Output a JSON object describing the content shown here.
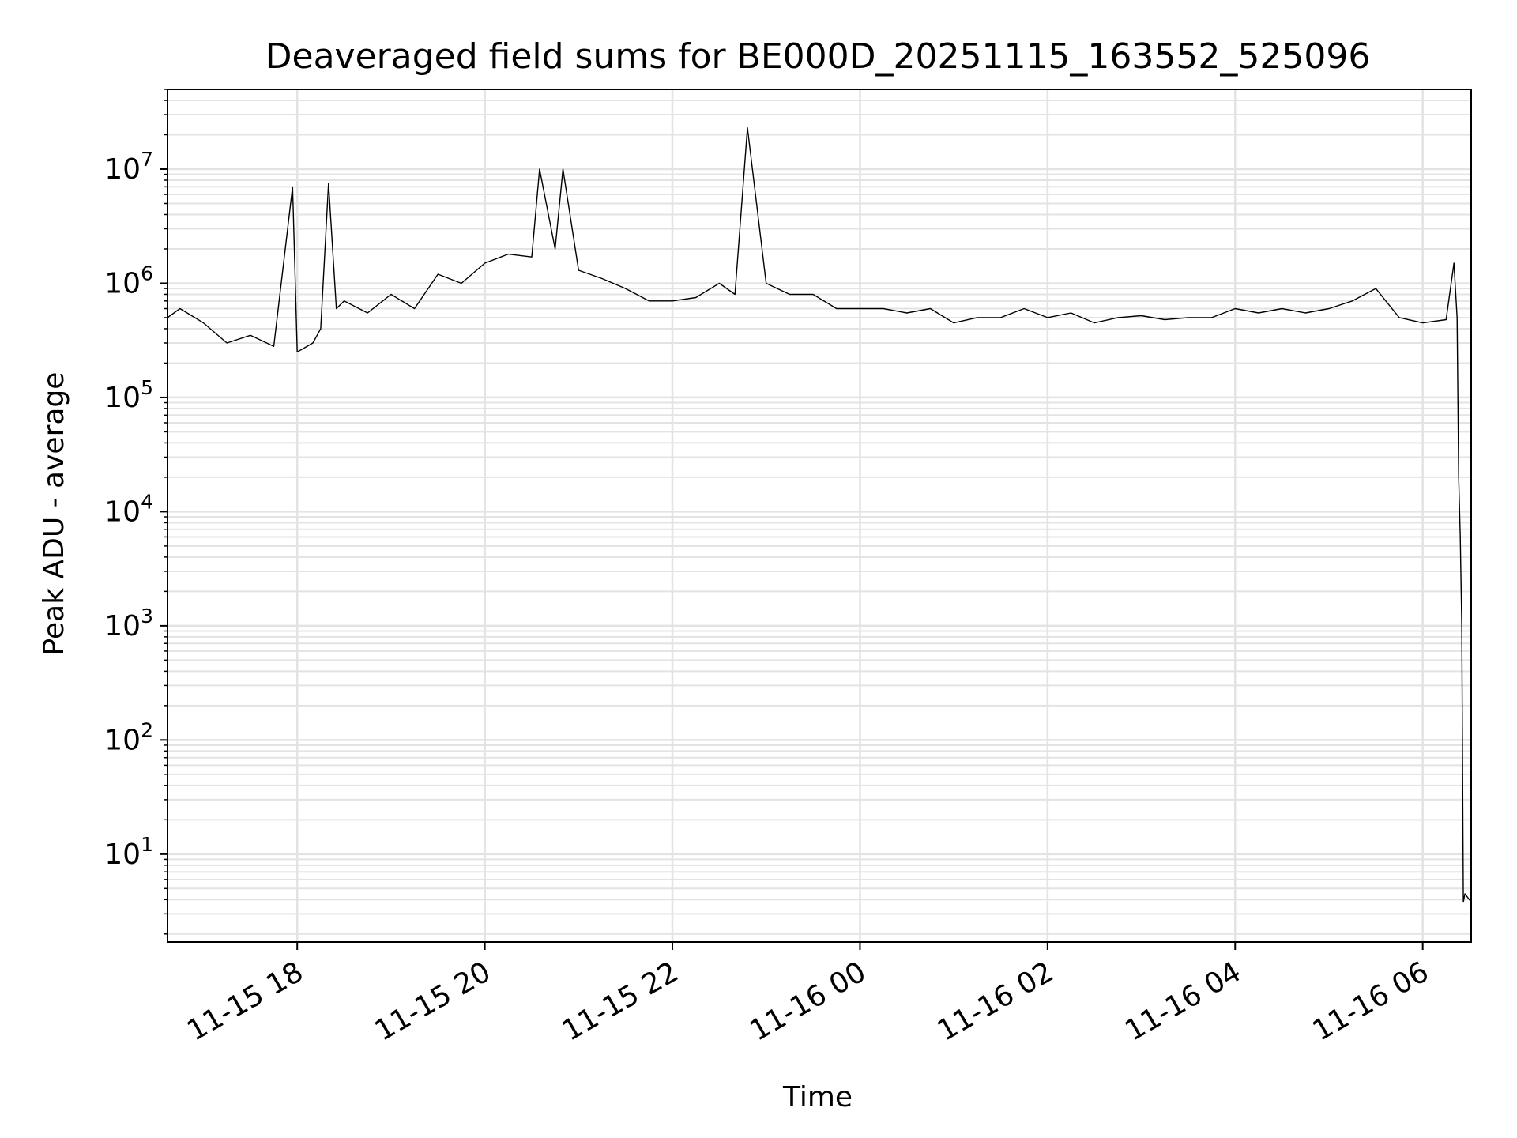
{
  "chart_data": {
    "type": "line",
    "title": "Deaveraged field sums for BE000D_20251115_163552_525096",
    "xlabel": "Time",
    "ylabel": "Peak ADU - average",
    "yscale": "log",
    "ylim": [
      1.7,
      50000000
    ],
    "xlim": [
      "2025-11-15 16:37",
      "2025-11-16 06:31"
    ],
    "grid": true,
    "line_color": "#000000",
    "grid_color": "#e3e3e3",
    "x_ticks": [
      {
        "value": "2025-11-15 18:00",
        "label": "11-15 18"
      },
      {
        "value": "2025-11-15 20:00",
        "label": "11-15 20"
      },
      {
        "value": "2025-11-15 22:00",
        "label": "11-15 22"
      },
      {
        "value": "2025-11-16 00:00",
        "label": "11-16 00"
      },
      {
        "value": "2025-11-16 02:00",
        "label": "11-16 02"
      },
      {
        "value": "2025-11-16 04:00",
        "label": "11-16 04"
      },
      {
        "value": "2025-11-16 06:00",
        "label": "11-16 06"
      }
    ],
    "y_ticks": [
      {
        "value": 10,
        "base": "10",
        "exp": "1"
      },
      {
        "value": 100,
        "base": "10",
        "exp": "2"
      },
      {
        "value": 1000,
        "base": "10",
        "exp": "3"
      },
      {
        "value": 10000,
        "base": "10",
        "exp": "4"
      },
      {
        "value": 100000,
        "base": "10",
        "exp": "5"
      },
      {
        "value": 1000000,
        "base": "10",
        "exp": "6"
      },
      {
        "value": 10000000,
        "base": "10",
        "exp": "7"
      }
    ],
    "series": [
      {
        "x": [
          "2025-11-15 16:37",
          "2025-11-15 16:45",
          "2025-11-15 17:00",
          "2025-11-15 17:15",
          "2025-11-15 17:30",
          "2025-11-15 17:45",
          "2025-11-15 17:57",
          "2025-11-15 18:00",
          "2025-11-15 18:10",
          "2025-11-15 18:15",
          "2025-11-15 18:20",
          "2025-11-15 18:25",
          "2025-11-15 18:30",
          "2025-11-15 18:45",
          "2025-11-15 19:00",
          "2025-11-15 19:15",
          "2025-11-15 19:30",
          "2025-11-15 19:45",
          "2025-11-15 20:00",
          "2025-11-15 20:15",
          "2025-11-15 20:30",
          "2025-11-15 20:35",
          "2025-11-15 20:45",
          "2025-11-15 20:50",
          "2025-11-15 21:00",
          "2025-11-15 21:15",
          "2025-11-15 21:30",
          "2025-11-15 21:45",
          "2025-11-15 22:00",
          "2025-11-15 22:15",
          "2025-11-15 22:30",
          "2025-11-15 22:40",
          "2025-11-15 22:48",
          "2025-11-15 23:00",
          "2025-11-15 23:15",
          "2025-11-15 23:30",
          "2025-11-15 23:45",
          "2025-11-16 00:00",
          "2025-11-16 00:15",
          "2025-11-16 00:30",
          "2025-11-16 00:45",
          "2025-11-16 01:00",
          "2025-11-16 01:15",
          "2025-11-16 01:30",
          "2025-11-16 01:45",
          "2025-11-16 02:00",
          "2025-11-16 02:15",
          "2025-11-16 02:30",
          "2025-11-16 02:45",
          "2025-11-16 03:00",
          "2025-11-16 03:15",
          "2025-11-16 03:30",
          "2025-11-16 03:45",
          "2025-11-16 04:00",
          "2025-11-16 04:15",
          "2025-11-16 04:30",
          "2025-11-16 04:45",
          "2025-11-16 05:00",
          "2025-11-16 05:15",
          "2025-11-16 05:30",
          "2025-11-16 05:45",
          "2025-11-16 06:00",
          "2025-11-16 06:15",
          "2025-11-16 06:20",
          "2025-11-16 06:22",
          "2025-11-16 06:23",
          "2025-11-16 06:24",
          "2025-11-16 06:25",
          "2025-11-16 06:26",
          "2025-11-16 06:27",
          "2025-11-16 06:31"
        ],
        "values": [
          500000,
          600000,
          450000,
          300000,
          350000,
          280000,
          7000000,
          250000,
          300000,
          400000,
          7500000,
          600000,
          700000,
          550000,
          800000,
          600000,
          1200000,
          1000000,
          1500000,
          1800000,
          1700000,
          10000000,
          2000000,
          10000000,
          1300000,
          1100000,
          900000,
          700000,
          700000,
          750000,
          1000000,
          800000,
          23000000,
          1000000,
          800000,
          800000,
          600000,
          600000,
          600000,
          550000,
          600000,
          450000,
          500000,
          500000,
          600000,
          500000,
          550000,
          450000,
          500000,
          520000,
          480000,
          500000,
          500000,
          600000,
          550000,
          600000,
          550000,
          600000,
          700000,
          900000,
          500000,
          450000,
          480000,
          1500000,
          500000,
          20000,
          6000,
          1000,
          3.8,
          4.5,
          3.8
        ]
      }
    ]
  }
}
